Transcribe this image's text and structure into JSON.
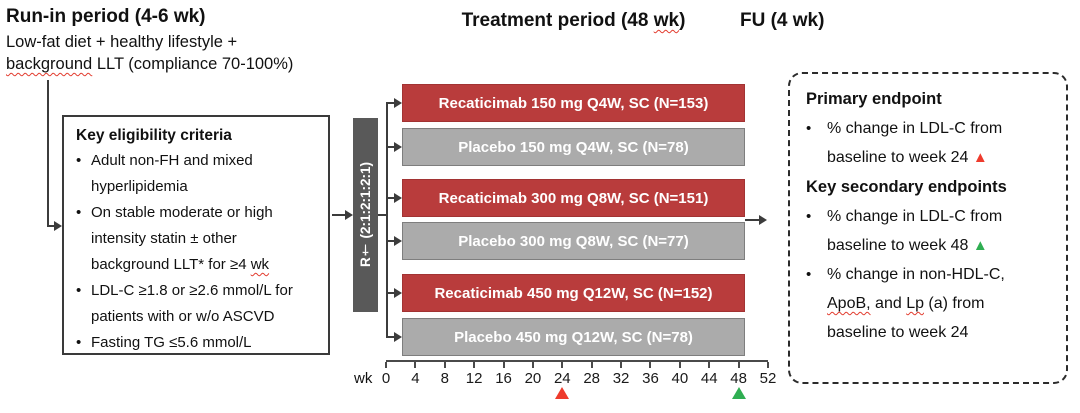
{
  "colors": {
    "active_bar": "#b93c3c",
    "placebo_bar": "#ababab",
    "randomization_bar": "#595959",
    "marker_red": "#ee3b2d",
    "marker_green": "#2fae52"
  },
  "icons": {
    "marker_triangle": "▲",
    "bullet": "•"
  },
  "header": {
    "runin_title": "Run-in period (4-6 wk)",
    "runin_line1": "Low-fat diet + healthy lifestyle +",
    "runin_line2_wavy": "background",
    "runin_line2_rest": " LLT (compliance 70-100%)",
    "treatment_title_pre": "Treatment period (48 ",
    "treatment_title_wavy": "wk",
    "treatment_title_post": ")",
    "fu_title": "FU (4 wk)"
  },
  "eligibility": {
    "title": "Key eligibility criteria",
    "items": [
      {
        "text": "Adult non-FH and mixed hyperlipidemia"
      },
      {
        "pre": "On stable moderate or high intensity statin ± other background LLT* for ≥4 ",
        "wavy": "wk"
      },
      {
        "text": "LDL-C ≥1.8 or ≥2.6 mmol/L for patients with or w/o ASCVD"
      },
      {
        "text": "Fasting TG ≤5.6 mmol/L"
      }
    ]
  },
  "randomization": {
    "label": "R† (2:1:2:1:2:1)"
  },
  "arms": [
    {
      "label": "Recaticimab 150 mg Q4W, SC (N=153)",
      "type": "active"
    },
    {
      "label": "Placebo 150 mg Q4W, SC (N=78)",
      "type": "placebo"
    },
    {
      "label": "Recaticimab 300 mg Q8W, SC (N=151)",
      "type": "active"
    },
    {
      "label": "Placebo 300 mg Q8W, SC (N=77)",
      "type": "placebo"
    },
    {
      "label": "Recaticimab 450 mg Q12W, SC (N=152)",
      "type": "active"
    },
    {
      "label": "Placebo 450 mg Q12W, SC (N=78)",
      "type": "placebo"
    }
  ],
  "axis": {
    "unit": "wk",
    "ticks": [
      "0",
      "4",
      "8",
      "12",
      "16",
      "20",
      "24",
      "28",
      "32",
      "36",
      "40",
      "44",
      "48",
      "52"
    ],
    "red_marker_week": "24",
    "green_marker_week": "48"
  },
  "endpoints": {
    "primary_title": "Primary endpoint",
    "primary_item": "% change in LDL-C from baseline to week 24 ",
    "secondary_title": "Key secondary endpoints",
    "secondary_item1": "% change in LDL-C from baseline to week 48 ",
    "secondary_item2_pre": "% change in non-HDL-C, ",
    "secondary_item2_wavy1": "ApoB,",
    "secondary_item2_mid": " and ",
    "secondary_item2_wavy2": "Lp",
    "secondary_item2_post": " (a) from baseline to week 24"
  }
}
